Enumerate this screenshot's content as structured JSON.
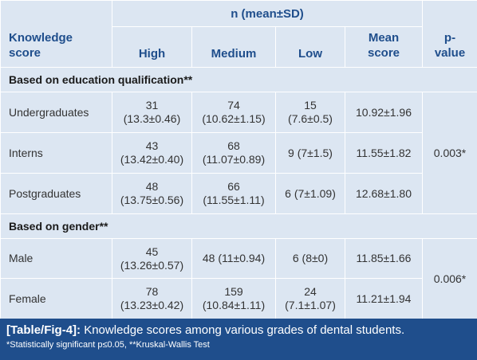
{
  "header": {
    "group_label": "n (mean±SD)",
    "row_label": "Knowledge score",
    "columns": [
      "High",
      "Medium",
      "Low",
      "Mean score",
      "p-value"
    ]
  },
  "sections": [
    {
      "title": "Based on education qualification**",
      "p_value": "0.003*",
      "rows": [
        {
          "label": "Undergraduates",
          "high": "31\n(13.3±0.46)",
          "medium": "74\n(10.62±1.15)",
          "low": "15\n(7.6±0.5)",
          "mean": "10.92±1.96"
        },
        {
          "label": "Interns",
          "high": "43\n(13.42±0.40)",
          "medium": "68\n(11.07±0.89)",
          "low": "9 (7±1.5)",
          "mean": "11.55±1.82"
        },
        {
          "label": "Postgraduates",
          "high": "48\n(13.75±0.56)",
          "medium": "66\n(11.55±1.11)",
          "low": "6 (7±1.09)",
          "mean": "12.68±1.80"
        }
      ]
    },
    {
      "title": "Based on gender**",
      "p_value": "0.006*",
      "rows": [
        {
          "label": "Male",
          "high": "45\n(13.26±0.57)",
          "medium": "48 (11±0.94)",
          "low": "6 (8±0)",
          "mean": "11.85±1.66"
        },
        {
          "label": "Female",
          "high": "78\n(13.23±0.42)",
          "medium": "159\n(10.84±1.11)",
          "low": "24\n(7.1±1.07)",
          "mean": "11.21±1.94"
        }
      ]
    }
  ],
  "caption": {
    "tag": "[Table/Fig-4]:",
    "text": " Knowledge scores among various grades of dental students.",
    "note": "*Statistically significant p≤0.05, **Kruskal-Wallis Test"
  },
  "colors": {
    "cell_bg": "#dce6f2",
    "header_text": "#1f4e8c",
    "caption_bg": "#1f4e8c"
  }
}
